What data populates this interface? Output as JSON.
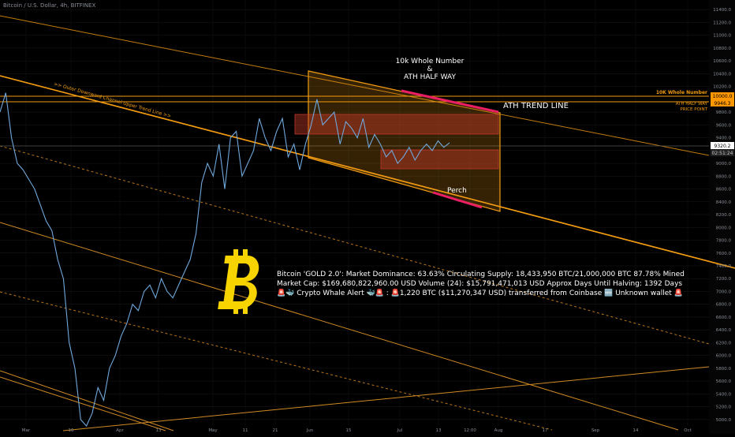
{
  "header": {
    "symbol": "Bitcoin / U.S. Dollar, 4h, BITFINEX"
  },
  "colors": {
    "background": "#000000",
    "candle": "#6fa8dc",
    "trend": "#f39c12",
    "box": "#c0392b",
    "accent": "#e91e63",
    "price_label_bg": "#ff9800",
    "axis_text": "#8a8f98",
    "logo": "#f7d300"
  },
  "annotations": {
    "whole_number_line1": "10k Whole Number",
    "whole_number_line2": "&",
    "whole_number_line3": "ATH HALF WAY",
    "ath_trend": "ATH TREND LINE",
    "perch": "Perch",
    "outer_channel": ">> Outer Downward Channel Upper Trend Line >>",
    "tag_10k": "10K Whole Number",
    "tag_ath_half_1": "ATH HALF WAY",
    "tag_ath_half_2": "PRICE POINT"
  },
  "info": {
    "line1": "Bitcoin 'GOLD 2.0': Market Dominance: 63.63%  Circulating Supply: 18,433,950 BTC/21,000,000 BTC 87.78% Mined",
    "line2": "Market Cap: $169,680,822,960.00 USD Volume (24): $15,791,471,013 USD Approx Days Until Halving: 1392 Days",
    "line3": "🚨🐳 Crypto Whale Alert 🐳🚨 : 🚨1,220 BTC ($11,270,347 USD) transferred from Coinbase 🆕 Unknown wallet 🚨"
  },
  "price_tags": {
    "p10000": "10000.0",
    "p9946": "9946.3",
    "p9320": "9320.2",
    "countdown": "02:51:24"
  },
  "chart_data": {
    "type": "line",
    "title": "Bitcoin / U.S. Dollar, 4h, BITFINEX",
    "ylim": [
      4900,
      11550
    ],
    "y_ticks": [
      "11400.0",
      "11200.0",
      "11000.0",
      "10800.0",
      "10600.0",
      "10400.0",
      "10200.0",
      "10000.0",
      "9800.0",
      "9600.0",
      "9400.0",
      "9200.0",
      "9000.0",
      "8800.0",
      "8600.0",
      "8400.0",
      "8200.0",
      "8000.0",
      "7800.0",
      "7600.0",
      "7400.0",
      "7200.0",
      "7000.0",
      "6800.0",
      "6600.0",
      "6400.0",
      "6200.0",
      "6000.0",
      "5800.0",
      "5600.0",
      "5400.0",
      "5200.0",
      "5000.0"
    ],
    "x_ticks": [
      "Mar",
      "16",
      "Apr",
      "13",
      "May",
      "11",
      "21",
      "Jun",
      "15",
      "Jul",
      "13",
      "12:00",
      "Aug",
      "17",
      "Sep",
      "14",
      "Oct"
    ],
    "series": [
      {
        "values": [
          9800,
          10100,
          9400,
          9000,
          8900,
          8750,
          8600,
          8350,
          8100,
          7950,
          7500,
          7200,
          6200,
          5800,
          5000,
          4900,
          5100,
          5500,
          5300,
          5800,
          6000,
          6300,
          6500,
          6800,
          6700,
          7000,
          7100,
          6900,
          7200,
          7000,
          6900,
          7100,
          7300,
          7500,
          7900,
          8700,
          9000,
          8800,
          9300,
          8600,
          9400,
          9500,
          8800,
          9000,
          9200,
          9700,
          9400,
          9200,
          9500,
          9700,
          9100,
          9300,
          8900,
          9300,
          9600,
          10000,
          9600,
          9700,
          9800,
          9300,
          9650,
          9550,
          9400,
          9700,
          9250,
          9450,
          9300,
          9100,
          9200,
          9000,
          9100,
          9250,
          9050,
          9200,
          9300,
          9200,
          9350,
          9250,
          9320
        ]
      }
    ]
  }
}
